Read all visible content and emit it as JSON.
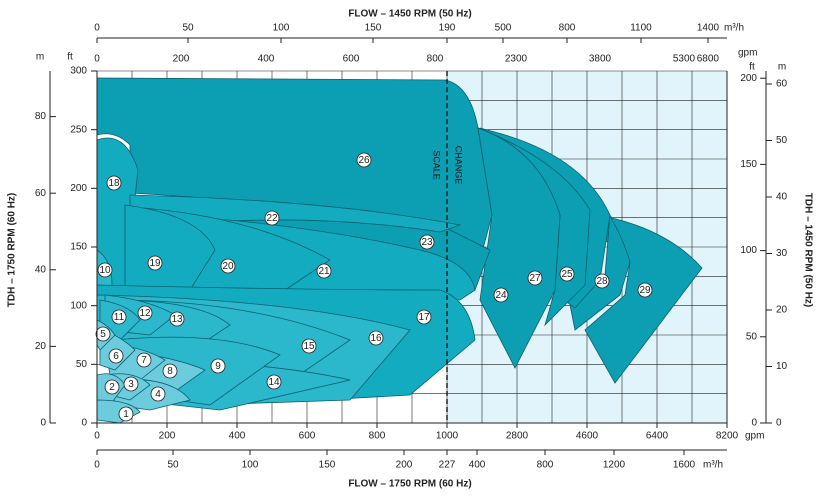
{
  "top_axis": {
    "title": "FLOW – 1450 RPM (50 Hz)",
    "m3h_unit": "m³/h",
    "gpm_unit": "gpm",
    "m3h_ticks": [
      "0",
      "50",
      "100",
      "150",
      "190",
      "500",
      "800",
      "1100",
      "1400"
    ],
    "gpm_ticks": [
      "0",
      "200",
      "400",
      "600",
      "800",
      "2300",
      "3800",
      "5300",
      "6800"
    ]
  },
  "bottom_axis": {
    "title": "FLOW – 1750 RPM (60 Hz)",
    "gpm_unit": "gpm",
    "m3h_unit": "m³/h",
    "gpm_ticks": [
      "0",
      "200",
      "400",
      "600",
      "800",
      "1000",
      "2800",
      "4600",
      "6400",
      "8200"
    ],
    "m3h_ticks": [
      "0",
      "50",
      "100",
      "150",
      "200",
      "227",
      "400",
      "800",
      "1200",
      "1600"
    ]
  },
  "left_axis": {
    "title": "TDH – 1750 RPM (60 Hz)",
    "m_unit": "m",
    "ft_unit": "ft",
    "ft_ticks": [
      "0",
      "50",
      "100",
      "150",
      "200",
      "250",
      "300"
    ],
    "m_ticks": [
      "0",
      "20",
      "40",
      "60",
      "80"
    ]
  },
  "right_axis": {
    "title": "TDH – 1450 RPM (50 Hz)",
    "ft_unit": "ft",
    "m_unit": "m",
    "ft_ticks": [
      "0",
      "50",
      "100",
      "150",
      "200"
    ],
    "m_ticks": [
      "0",
      "10",
      "20",
      "30",
      "40",
      "50",
      "60"
    ]
  },
  "scale_change": [
    "SCALE",
    "CHANGE"
  ],
  "regions": [
    "1",
    "2",
    "3",
    "4",
    "5",
    "6",
    "7",
    "8",
    "9",
    "10",
    "11",
    "12",
    "13",
    "14",
    "15",
    "16",
    "17",
    "18",
    "19",
    "20",
    "21",
    "22",
    "23",
    "24",
    "25",
    "26",
    "27",
    "28",
    "29"
  ]
}
